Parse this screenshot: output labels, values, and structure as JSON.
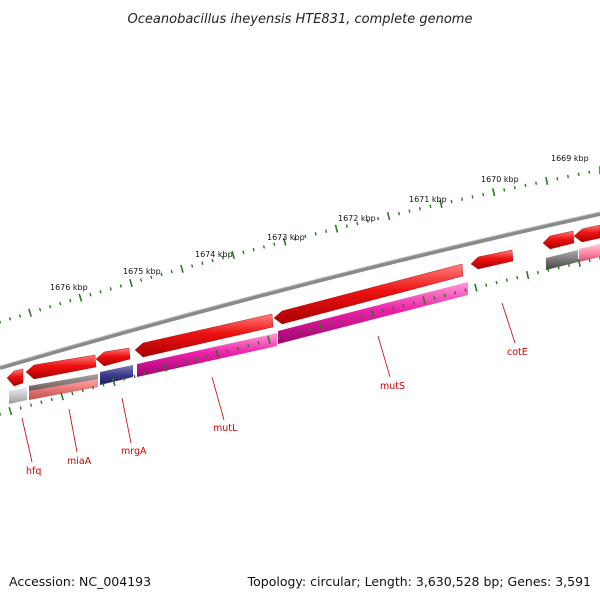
{
  "title": "Oceanobacillus iheyensis HTE831, complete genome",
  "accession": "Accession: NC_004193",
  "topology": "Topology: circular; Length: 3,630,528 bp; Genes: 3,591",
  "colors": {
    "backbone": "#8a8a8a",
    "tick": "#2a7a1e",
    "gene_red": "#ee1111",
    "gene_pink": "#ff88aa",
    "gene_salmon": "#f08080",
    "gene_magenta": "#ee22aa",
    "gene_navy": "#3a3a8a",
    "gene_gray": "#777777",
    "gene_lightgray": "#c8c8c8",
    "label": "#cc0000"
  },
  "kbp_labels": [
    "1669 kbp",
    "1670 kbp",
    "1671 kbp",
    "1672 kbp",
    "1673 kbp",
    "1674 kbp",
    "1675 kbp",
    "1676 kbp"
  ],
  "genes": [
    {
      "name": "hfq"
    },
    {
      "name": "miaA"
    },
    {
      "name": "mrgA"
    },
    {
      "name": "mutL"
    },
    {
      "name": "mutS"
    },
    {
      "name": "cotE"
    }
  ]
}
